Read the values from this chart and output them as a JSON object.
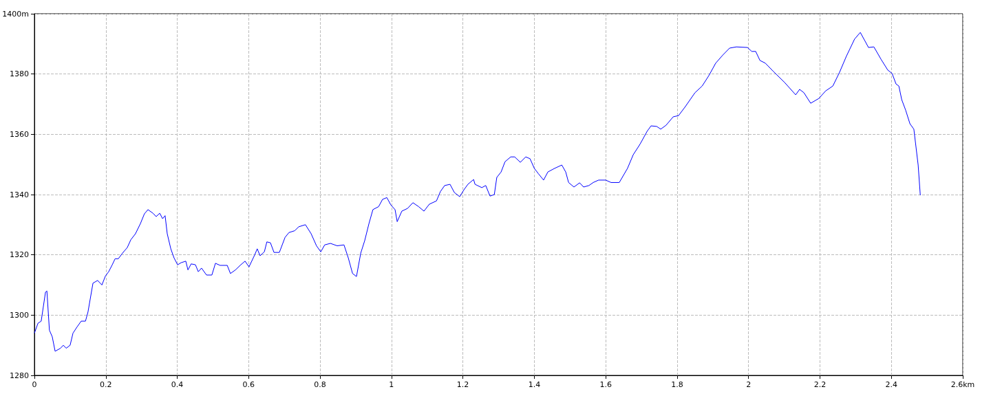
{
  "chart_data": {
    "type": "line",
    "x": [
      0,
      0.01,
      0.019,
      0.031,
      0.035,
      0.042,
      0.05,
      0.058,
      0.073,
      0.081,
      0.089,
      0.1,
      0.108,
      0.119,
      0.131,
      0.143,
      0.15,
      0.164,
      0.177,
      0.189,
      0.199,
      0.208,
      0.218,
      0.226,
      0.235,
      0.247,
      0.26,
      0.27,
      0.283,
      0.297,
      0.308,
      0.318,
      0.332,
      0.341,
      0.351,
      0.359,
      0.366,
      0.372,
      0.382,
      0.391,
      0.401,
      0.411,
      0.424,
      0.43,
      0.439,
      0.451,
      0.459,
      0.468,
      0.482,
      0.497,
      0.507,
      0.52,
      0.54,
      0.549,
      0.563,
      0.578,
      0.59,
      0.601,
      0.617,
      0.624,
      0.632,
      0.644,
      0.651,
      0.661,
      0.671,
      0.686,
      0.702,
      0.713,
      0.729,
      0.74,
      0.759,
      0.775,
      0.79,
      0.802,
      0.813,
      0.829,
      0.848,
      0.867,
      0.879,
      0.891,
      0.902,
      0.914,
      0.925,
      0.937,
      0.948,
      0.964,
      0.975,
      0.987,
      0.998,
      1.01,
      1.016,
      1.029,
      1.045,
      1.06,
      1.076,
      1.091,
      1.106,
      1.126,
      1.137,
      1.149,
      1.164,
      1.176,
      1.191,
      1.203,
      1.214,
      1.23,
      1.234,
      1.253,
      1.264,
      1.276,
      1.288,
      1.295,
      1.307,
      1.318,
      1.334,
      1.345,
      1.361,
      1.376,
      1.388,
      1.4,
      1.411,
      1.426,
      1.438,
      1.457,
      1.477,
      1.488,
      1.496,
      1.511,
      1.527,
      1.538,
      1.553,
      1.565,
      1.58,
      1.6,
      1.615,
      1.638,
      1.661,
      1.677,
      1.696,
      1.716,
      1.727,
      1.743,
      1.754,
      1.769,
      1.789,
      1.804,
      1.823,
      1.85,
      1.87,
      1.889,
      1.908,
      1.928,
      1.947,
      1.966,
      1.997,
      2.009,
      2.02,
      2.032,
      2.047,
      2.07,
      2.101,
      2.132,
      2.143,
      2.155,
      2.174,
      2.197,
      2.216,
      2.236,
      2.255,
      2.274,
      2.297,
      2.313,
      2.336,
      2.351,
      2.371,
      2.39,
      2.402,
      2.413,
      2.421,
      2.429,
      2.44,
      2.452,
      2.463,
      2.475,
      2.481
    ],
    "series": [
      {
        "color": "#0000ff",
        "values": [
          1294,
          1297.3,
          1298,
          1307.6,
          1308,
          1295,
          1292.8,
          1288,
          1289,
          1290,
          1289,
          1290,
          1294,
          1296,
          1298,
          1298,
          1301,
          1310.6,
          1311.5,
          1310,
          1313,
          1314.4,
          1316.7,
          1318.7,
          1318.7,
          1320.6,
          1322.4,
          1325,
          1327,
          1330.4,
          1333.6,
          1335,
          1333.8,
          1332.7,
          1333.8,
          1332,
          1333,
          1327,
          1322,
          1319,
          1316.7,
          1317.4,
          1317.9,
          1315,
          1317,
          1316.7,
          1314.4,
          1315.6,
          1313.3,
          1313.3,
          1317.2,
          1316.5,
          1316.5,
          1313.8,
          1315,
          1316.7,
          1317.9,
          1316,
          1320,
          1322,
          1319.7,
          1321,
          1324.3,
          1324,
          1320.8,
          1320.8,
          1325.8,
          1327.4,
          1328,
          1329.3,
          1330,
          1327,
          1323,
          1321,
          1323.3,
          1323.8,
          1323,
          1323.3,
          1319,
          1313.8,
          1312.8,
          1320.6,
          1324.7,
          1330.4,
          1335,
          1336,
          1338.4,
          1339,
          1336.6,
          1335,
          1331,
          1334.5,
          1335.4,
          1337.3,
          1336,
          1334.5,
          1336.8,
          1337.9,
          1341,
          1343,
          1343.4,
          1340.7,
          1339.3,
          1341.6,
          1343.4,
          1345,
          1343.4,
          1342.3,
          1343,
          1339.5,
          1340,
          1345.7,
          1347.5,
          1350.9,
          1352.5,
          1352.5,
          1350.7,
          1352.5,
          1351.9,
          1348.7,
          1347,
          1344.8,
          1347.5,
          1348.7,
          1349.8,
          1347.5,
          1344,
          1342.5,
          1343.9,
          1342.5,
          1343,
          1344,
          1344.8,
          1344.8,
          1344,
          1344,
          1348.7,
          1353.2,
          1356.7,
          1361,
          1362.8,
          1362.6,
          1361.7,
          1363,
          1365.8,
          1366.2,
          1369.2,
          1373.8,
          1376,
          1379.5,
          1383.6,
          1386.3,
          1388.6,
          1389,
          1388.8,
          1387.5,
          1387.5,
          1384.5,
          1383.6,
          1380.8,
          1377.2,
          1373.1,
          1374.9,
          1373.8,
          1370.3,
          1371.9,
          1374.4,
          1376,
          1380.6,
          1385.9,
          1391.6,
          1393.8,
          1388.8,
          1389,
          1384.9,
          1381.3,
          1380.2,
          1376.7,
          1376,
          1371.5,
          1368,
          1363.5,
          1361.7,
          1349.8,
          1339.8
        ]
      }
    ],
    "xlim": [
      0,
      2.6
    ],
    "xticks": [
      0,
      0.2,
      0.4,
      0.6,
      0.8,
      1,
      1.2,
      1.4,
      1.6,
      1.8,
      2,
      2.2,
      2.4,
      {
        "value": 2.6,
        "label": "2.6km"
      }
    ],
    "ylim": [
      1280,
      1400
    ],
    "yticks": [
      1280,
      1300,
      1320,
      1340,
      1360,
      1380,
      {
        "value": 1400,
        "label": "1400m"
      }
    ],
    "grid": true,
    "marker": "none",
    "line_style": "solid"
  }
}
